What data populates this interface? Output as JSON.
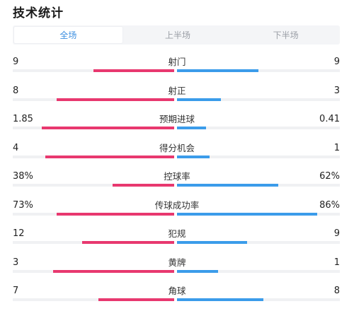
{
  "title": "技术统计",
  "tabs": [
    {
      "label": "全场",
      "active": true
    },
    {
      "label": "上半场",
      "active": false
    },
    {
      "label": "下半场",
      "active": false
    }
  ],
  "colors": {
    "home": "#e8386f",
    "away": "#3b9cea",
    "tab_active": "#3d8fe0"
  },
  "stats": [
    {
      "name": "射门",
      "home": "9",
      "away": "9",
      "home_share": 0.5,
      "away_share": 0.5
    },
    {
      "name": "射正",
      "home": "8",
      "away": "3",
      "home_share": 0.73,
      "away_share": 0.27
    },
    {
      "name": "预期进球",
      "home": "1.85",
      "away": "0.41",
      "home_share": 0.82,
      "away_share": 0.18
    },
    {
      "name": "得分机会",
      "home": "4",
      "away": "1",
      "home_share": 0.8,
      "away_share": 0.2
    },
    {
      "name": "控球率",
      "home": "38%",
      "away": "62%",
      "home_share": 0.38,
      "away_share": 0.62
    },
    {
      "name": "传球成功率",
      "home": "73%",
      "away": "86%",
      "home_share": 0.73,
      "away_share": 0.86
    },
    {
      "name": "犯规",
      "home": "12",
      "away": "9",
      "home_share": 0.57,
      "away_share": 0.43
    },
    {
      "name": "黄牌",
      "home": "3",
      "away": "1",
      "home_share": 0.75,
      "away_share": 0.25
    },
    {
      "name": "角球",
      "home": "7",
      "away": "8",
      "home_share": 0.47,
      "away_share": 0.53
    }
  ]
}
